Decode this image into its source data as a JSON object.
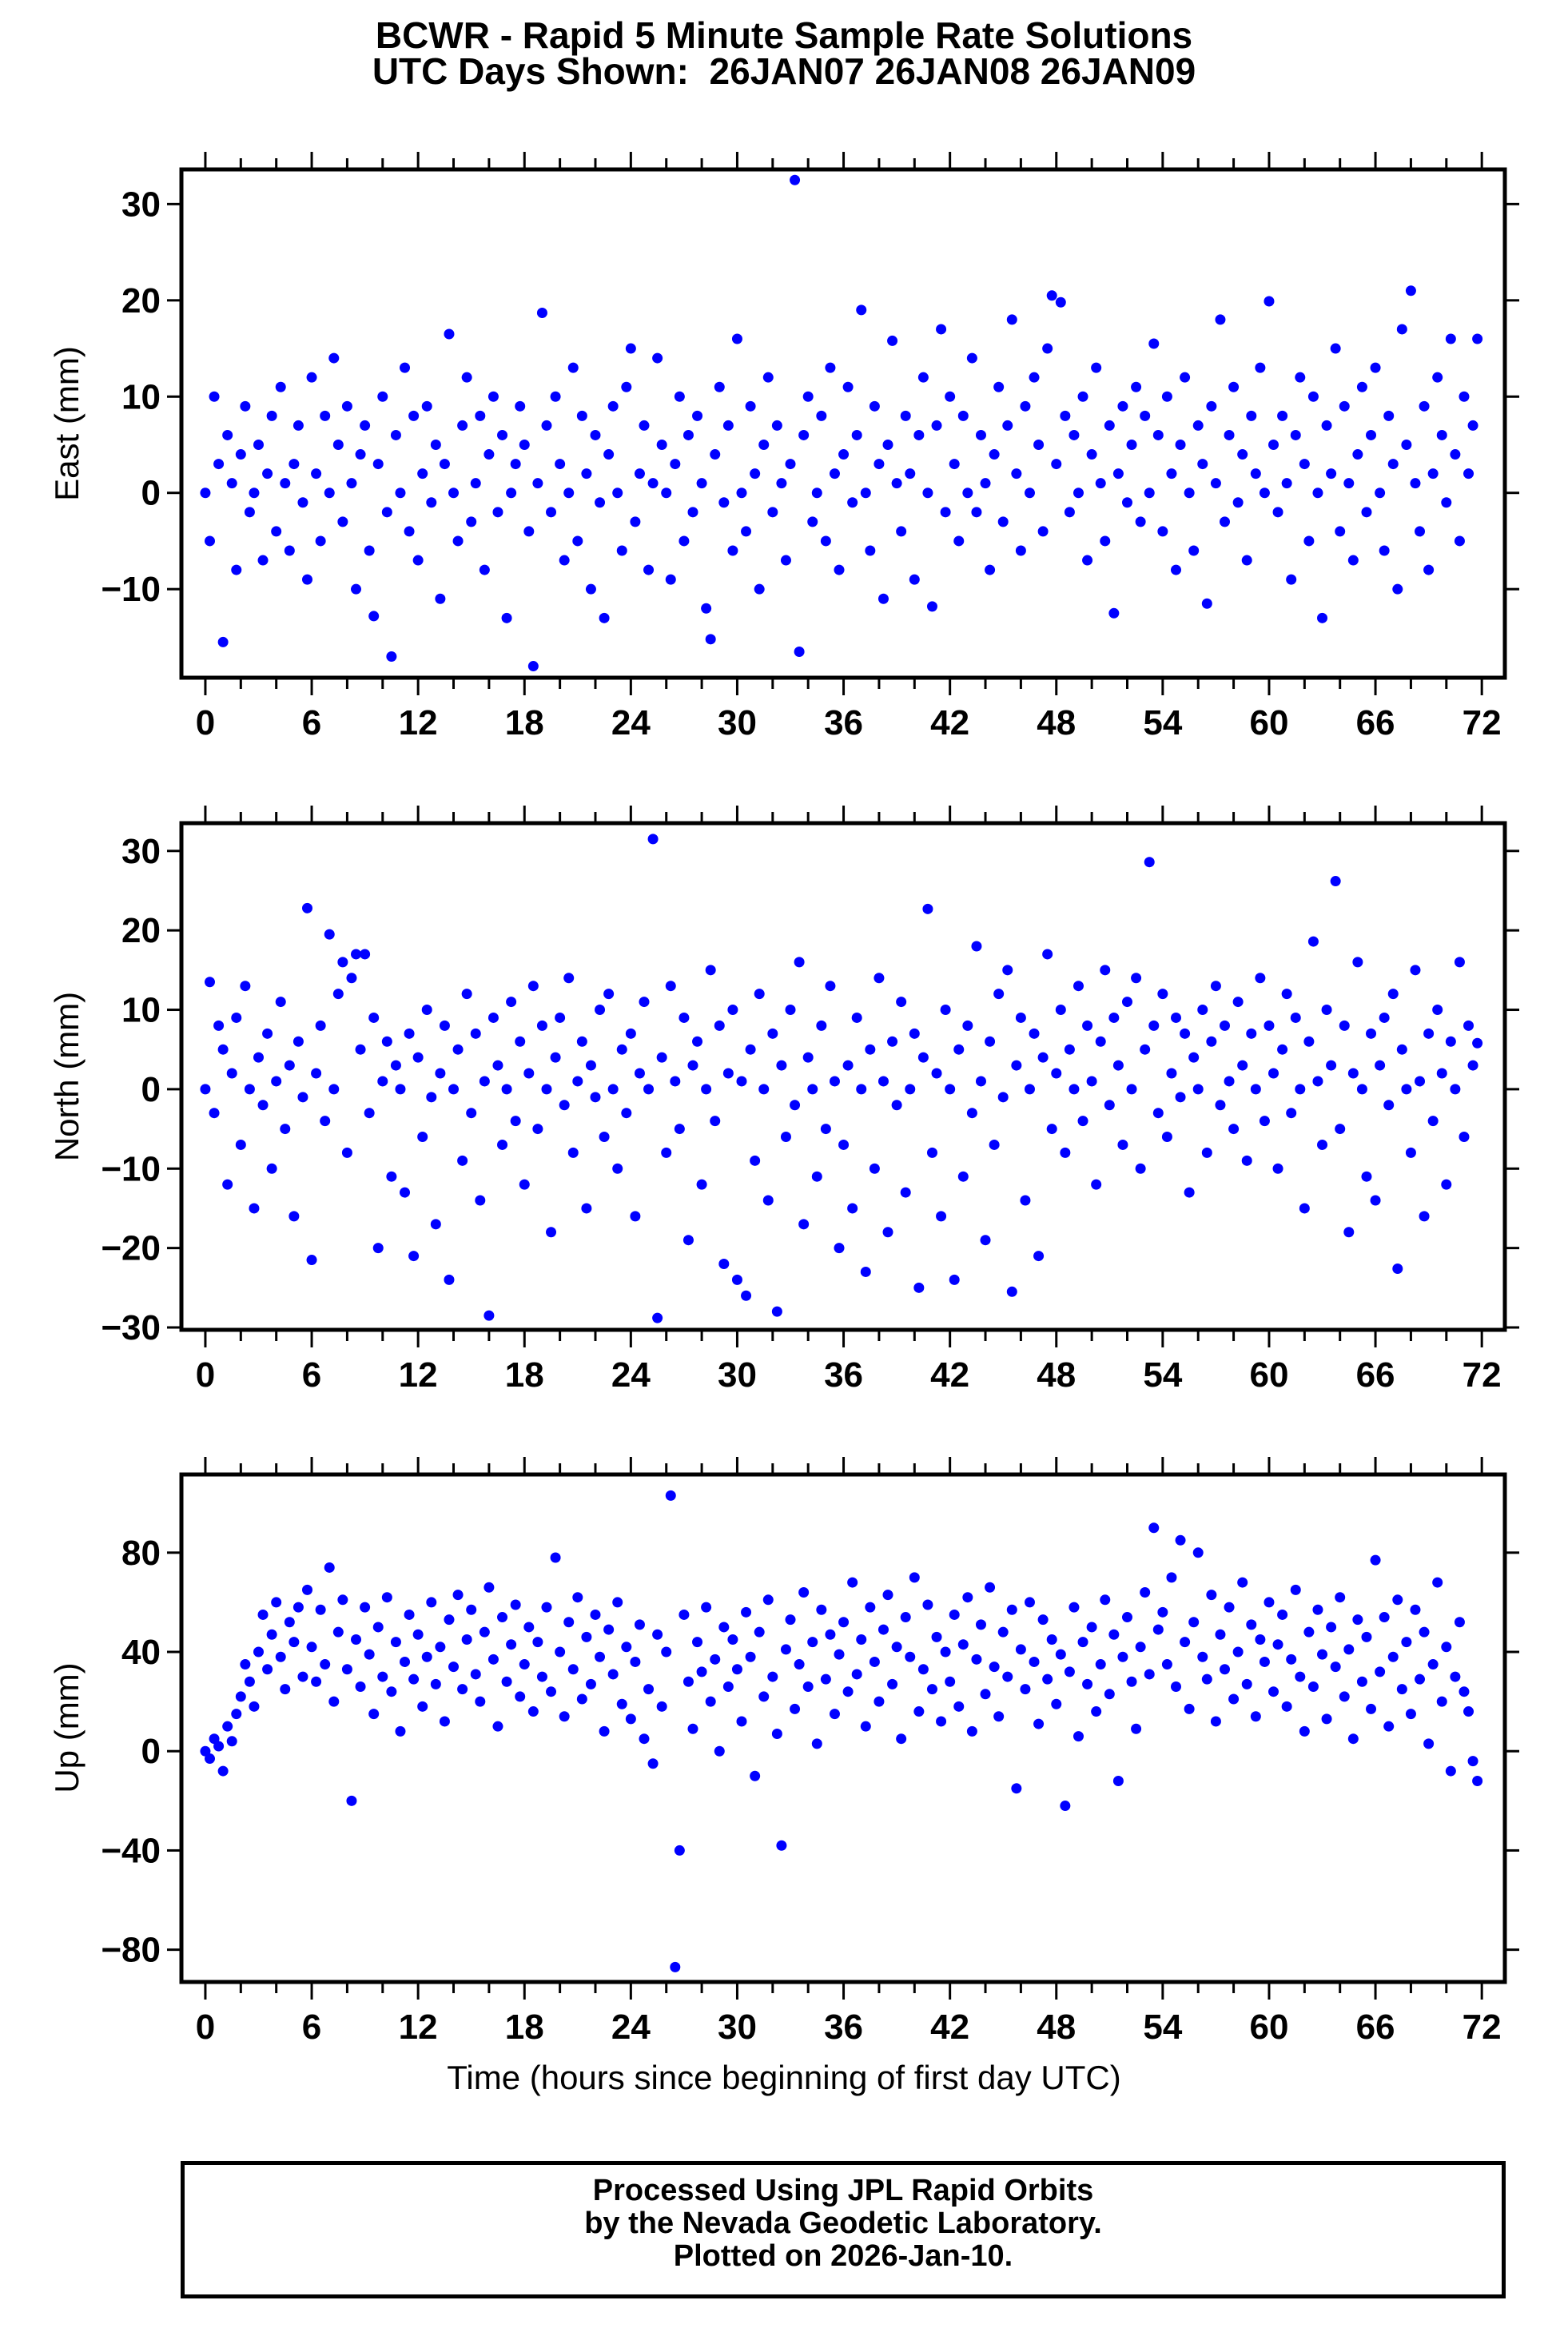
{
  "title": {
    "line1": "BCWR - Rapid 5 Minute Sample Rate Solutions",
    "line2": "UTC Days Shown:  26JAN07 26JAN08 26JAN09"
  },
  "xlabel": "Time (hours since beginning of first day UTC)",
  "footer": {
    "lines": [
      "Processed Using JPL Rapid Orbits",
      "by the Nevada Geodetic Laboratory.",
      "Plotted on 2026-Jan-10."
    ]
  },
  "colors": {
    "marker": "#0000ff",
    "axis": "#000000",
    "background": "#ffffff"
  },
  "chart_data": [
    {
      "type": "scatter",
      "name": "east",
      "ylabel": "East (mm)",
      "xlim": [
        -1.35,
        73.3
      ],
      "ylim": [
        -19.2,
        33.6
      ],
      "yticks": [
        30,
        20,
        10,
        0,
        -10
      ],
      "xticks": [
        0,
        6,
        12,
        18,
        24,
        30,
        36,
        42,
        48,
        54,
        60,
        66,
        72
      ],
      "x_major_step": 6,
      "x_minor_step": 2,
      "x_start": 0,
      "x_step": 0.25,
      "y_rows": [
        "0,-5,10,3,-15.5,6,1,-8,4,9,-2,0,5,-7,2,8,-4,11,1,-6,3,7,-1,-9",
        "12,2,-5,8,0,14,5,-3,9,1,-10,4,7,-6,-12.8,3,10,-2,-17,6,0,13,-4,8",
        "-7,2,9,-1,5,-11,3,16.5,0,-5,7,12,-3,1,8,-8,4,10,-2,6,-13,0,3,9",
        "5,-4,-18,1,18.7,7,-2,10,3,-7,0,13,-5,8,2,-10,6,-1,-13,4,9,0,-6,11",
        "15,-3,2,7,-8,1,14,5,0,-9,3,10,-5,6,-2,8,1,-12,-15.2,4,11,-1,7,-6",
        "16,0,-4,9,2,-10,5,12,-2,7,1,-7,3,32.5,-16.5,6,10,-3,0,8,-5,13,2,-8",
        "4,11,-1,6,19,0,-6,9,3,-11,5,15.8,1,-4,8,2,-9,6,12,0,-11.8,7,17,-2",
        "10,3,-5,8,0,14,-2,6,1,-8,4,11,-3,7,18,2,-6,9,0,12,5,-4,15,20.5",
        "3,19.8,8,-2,6,0,10,-7,4,13,1,-5,7,-12.5,2,9,-1,5,11,-3,8,0,15.5,6",
        "-4,10,2,-8,5,12,0,-6,7,3,-11.5,9,1,18,-3,6,11,-1,4,-7,8,2,13,0",
        "19.9,5,-2,8,1,-9,6,12,3,-5,10,0,-13,7,2,15,-4,9,1,-7,4,11,-2,6",
        "13,0,-6,8,3,-10,17,5,21,1,-4,9,-8,2,12,6,-1,16,4,-5,10,2,7,16"
      ]
    },
    {
      "type": "scatter",
      "name": "north",
      "ylabel": "North (mm)",
      "xlim": [
        -1.35,
        73.3
      ],
      "ylim": [
        -30.3,
        33.5
      ],
      "yticks": [
        30,
        20,
        10,
        0,
        -10,
        -20,
        -30
      ],
      "xticks": [
        0,
        6,
        12,
        18,
        24,
        30,
        36,
        42,
        48,
        54,
        60,
        66,
        72
      ],
      "x_major_step": 6,
      "x_minor_step": 2,
      "x_start": 0,
      "x_step": 0.25,
      "y_rows": [
        "0,13.5,-3,8,5,-12,2,9,-7,13,0,-15,4,-2,7,-10,1,11,-5,3,-16,6,-1,22.8",
        "-21.5,2,8,-4,19.5,0,12,16,-8,14,17,5,17,-3,9,-20,1,6,-11,3,0,-13,7,-21",
        "4,-6,10,-1,-17,2,8,-24,0,5,-9,12,-3,7,-14,1,-28.5,9,3,-7,0,11,-4,6",
        "-12,2,13,-5,8,0,-18,4,9,-2,14,-8,1,6,-15,3,-1,10,-6,12,0,-10,5,-3",
        "7,-16,2,11,0,31.5,-28.8,4,-8,13,1,-5,9,-19,3,6,-12,0,15,-4,8,-22,2,10",
        "-24,1,-26,5,-9,12,0,-14,7,-28,3,-6,10,-2,16,-17,4,0,-11,8,-5,13,1,-20",
        "-7,3,-15,9,0,-23,5,-10,14,1,-18,6,-2,11,-13,0,7,-25,4,22.7,-8,2,-16,10",
        "0,-24,5,-11,8,-3,18,1,-19,6,-7,12,-1,15,-25.5,3,9,-14,0,7,-21,4,17,-5",
        "2,10,-8,5,0,13,-4,8,1,-12,6,15,-2,9,3,-7,11,0,14,-10,5,28.6,8,-3",
        "12,-6,2,9,-1,7,-13,4,0,10,-8,6,13,-2,8,1,-5,11,3,-9,7,0,14,-4",
        "8,2,-10,5,12,-3,9,0,-15,6,18.6,1,-7,10,3,26.2,-5,8,-18,2,16,0,-11,7",
        "-14,3,9,-2,12,-22.6,5,0,-8,15,1,-16,7,-4,10,2,-12,6,0,16,-6,8,3,5.8"
      ]
    },
    {
      "type": "scatter",
      "name": "up",
      "ylabel": "Up (mm)",
      "xlim": [
        -1.35,
        73.3
      ],
      "ylim": [
        -93,
        111.5
      ],
      "yticks": [
        80,
        40,
        0,
        -40,
        -80
      ],
      "xticks": [
        0,
        6,
        12,
        18,
        24,
        30,
        36,
        42,
        48,
        54,
        60,
        66,
        72
      ],
      "x_major_step": 6,
      "x_minor_step": 2,
      "x_start": 0,
      "x_step": 0.25,
      "y_rows": [
        "0,-3,5,2,-8,10,4,15,22,35,28,18,40,55,33,47,60,38,25,52,44,58,30,65",
        "42,28,57,35,74,20,48,61,33,-20,45,26,58,39,15,50,30,62,24,44,8,36,55,29",
        "47,18,38,60,27,42,12,53,34,63,25,45,57,31,20,48,66,37,10,54,28,43,59,22",
        "35,50,16,44,30,58,24,78,40,14,52,33,62,21,46,27,55,38,8,49,31,60,19,42",
        "13,36,51,5,25,-5,47,18,40,103,-87,-40,55,28,9,44,32,58,20,37,0,50,26,45",
        "33,12,56,38,-10,48,22,61,30,7,-38,41,53,17,35,64,26,44,3,57,29,47,15,39",
        "52,24,68,31,45,10,58,36,20,49,63,27,42,5,54,38,70,16,33,59,25,46,12,40",
        "28,55,18,43,62,8,37,51,23,66,34,14,48,30,57,-15,41,25,60,36,11,53,29,45",
        "19,39,-22,32,58,6,44,27,50,16,35,61,23,47,-12,38,54,28,9,42,64,31,90,49",
        "56,35,70,26,85,44,17,52,80,38,29,63,12,47,33,58,21,40,68,27,51,14,45,36",
        "60,24,43,55,18,37,65,30,8,48,26,57,39,13,50,34,62,22,41,5,53,28,46,17",
        "77,32,54,10,38,61,25,44,15,57,29,48,3,35,68,20,42,-8,30,52,24,16,-4,-12"
      ]
    }
  ]
}
